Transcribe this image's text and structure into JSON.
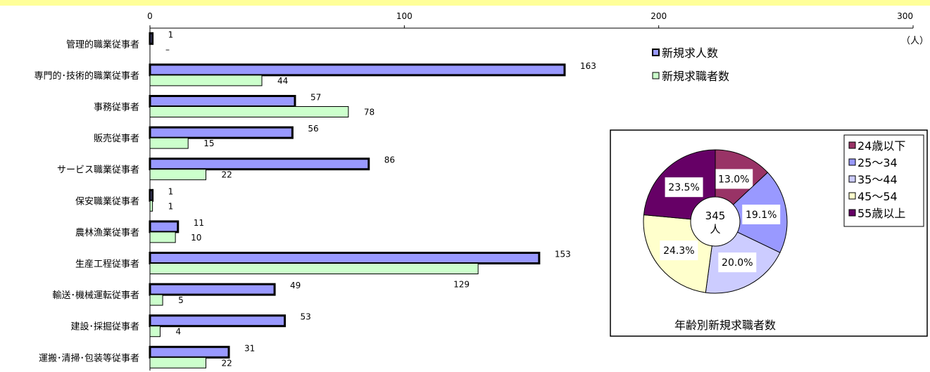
{
  "chart_data": [
    {
      "type": "bar",
      "orientation": "horizontal",
      "unit": "（人）",
      "xlim": [
        0,
        300
      ],
      "x_ticks": [
        "0",
        "100",
        "200",
        "300"
      ],
      "grid": false,
      "legend_position": "top-right",
      "categories": [
        "管理的職業従事者",
        "専門的･技術的職業従事者",
        "事務従事者",
        "販売従事者",
        "サービス職業従事者",
        "保安職業従事者",
        "農林漁業従事者",
        "生産工程従事者",
        "輸送･機械運転従事者",
        "建設･採掘従事者",
        "運搬･清掃･包装等従事者"
      ],
      "series": [
        {
          "name": "新規求人数",
          "color": "#9999ff",
          "values": [
            1,
            163,
            57,
            56,
            86,
            1,
            11,
            153,
            49,
            53,
            31
          ],
          "labels": [
            "1",
            "163",
            "57",
            "56",
            "86",
            "1",
            "11",
            "153",
            "49",
            "53",
            "31"
          ]
        },
        {
          "name": "新規求職者数",
          "color": "#ccffcc",
          "values": [
            0,
            44,
            78,
            15,
            22,
            1,
            10,
            129,
            5,
            4,
            22
          ],
          "labels": [
            "–",
            "44",
            "78",
            "15",
            "22",
            "1",
            "10",
            "129",
            "5",
            "4",
            "22"
          ]
        }
      ]
    },
    {
      "type": "pie",
      "title": "年齢別新規求職者数",
      "center_label": [
        "345",
        "人"
      ],
      "legend_position": "top-right",
      "slices": [
        {
          "name": "24歳以下",
          "value": 13.0,
          "label": "13.0%",
          "color": "#993366"
        },
        {
          "name": "25～34",
          "value": 19.1,
          "label": "19.1%",
          "color": "#9999ff"
        },
        {
          "name": "35～44",
          "value": 20.0,
          "label": "20.0%",
          "color": "#ccccff"
        },
        {
          "name": "45～54",
          "value": 24.3,
          "label": "24.3%",
          "color": "#ffffcc"
        },
        {
          "name": "55歳以上",
          "value": 23.5,
          "label": "23.5%",
          "color": "#660066"
        }
      ]
    }
  ]
}
